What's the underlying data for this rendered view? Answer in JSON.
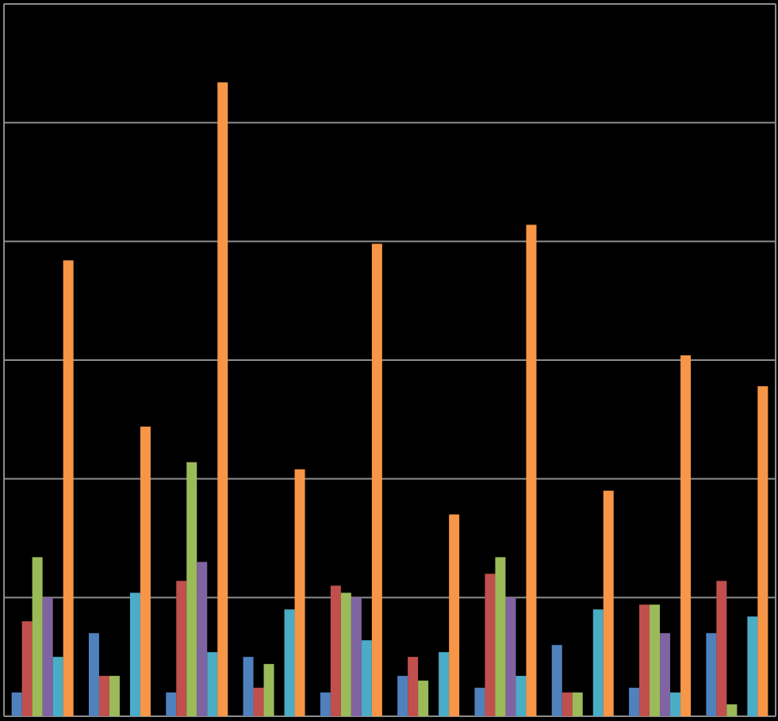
{
  "chart_data": {
    "type": "bar",
    "categories": [
      null,
      null,
      null,
      null,
      null,
      null,
      null,
      null,
      null,
      null
    ],
    "series": [
      {
        "color": "#4f81bd",
        "values": [
          1.0,
          3.5,
          1.0,
          2.5,
          1.0,
          1.7,
          1.2,
          3.0,
          1.2,
          3.5
        ]
      },
      {
        "color": "#c0504d",
        "values": [
          4.0,
          1.7,
          5.7,
          1.2,
          5.5,
          2.5,
          6.0,
          1.0,
          4.7,
          5.7
        ]
      },
      {
        "color": "#9bbb59",
        "values": [
          6.7,
          1.7,
          10.7,
          2.2,
          5.2,
          1.5,
          6.7,
          1.0,
          4.7,
          0.5
        ]
      },
      {
        "color": "#8064a2",
        "values": [
          5.0,
          0,
          6.5,
          0,
          5.0,
          0,
          5.0,
          0,
          3.5,
          0
        ]
      },
      {
        "color": "#4bacc6",
        "values": [
          2.5,
          5.2,
          2.7,
          4.5,
          3.2,
          2.7,
          1.7,
          4.5,
          1.0,
          4.2
        ]
      },
      {
        "color": "#f79646",
        "values": [
          19.2,
          12.2,
          26.7,
          10.4,
          19.9,
          8.5,
          20.7,
          9.5,
          15.2,
          13.9
        ]
      }
    ],
    "ylim": [
      0,
      30
    ],
    "yticks": [
      0,
      5,
      10,
      15,
      20,
      25,
      30
    ],
    "grid": true
  }
}
